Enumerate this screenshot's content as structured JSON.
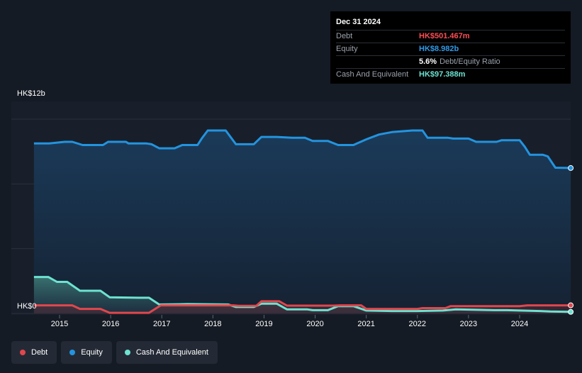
{
  "tooltip": {
    "date": "Dec 31 2024",
    "debt_label": "Debt",
    "debt_value": "HK$501.467m",
    "equity_label": "Equity",
    "equity_value": "HK$8.982b",
    "ratio_value": "5.6%",
    "ratio_label": "Debt/Equity Ratio",
    "cash_label": "Cash And Equivalent",
    "cash_value": "HK$97.388m"
  },
  "legend": [
    {
      "label": "Debt",
      "color": "#e0474c"
    },
    {
      "label": "Equity",
      "color": "#2394df"
    },
    {
      "label": "Cash And Equivalent",
      "color": "#6de2d0"
    }
  ],
  "chart_data": {
    "type": "line",
    "y_unit": "HK$b",
    "ylim": [
      0,
      12
    ],
    "ytick_labels": [
      "HK$0",
      "HK$12b"
    ],
    "xlim": [
      2014.5,
      2025.0
    ],
    "xticks": [
      2015,
      2016,
      2017,
      2018,
      2019,
      2020,
      2021,
      2022,
      2023,
      2024
    ],
    "series": [
      {
        "name": "Equity",
        "color": "#2394df",
        "x": [
          2014.5,
          2014.8,
          2014.95,
          2015.1,
          2015.25,
          2015.45,
          2015.55,
          2015.85,
          2015.95,
          2016.3,
          2016.35,
          2016.7,
          2016.8,
          2016.95,
          2017.0,
          2017.25,
          2017.4,
          2017.7,
          2017.78,
          2017.9,
          2018.25,
          2018.45,
          2018.55,
          2018.8,
          2018.95,
          2019.25,
          2019.55,
          2019.8,
          2019.95,
          2020.25,
          2020.45,
          2020.75,
          2021.0,
          2021.25,
          2021.5,
          2021.7,
          2021.9,
          2022.1,
          2022.2,
          2022.6,
          2022.7,
          2023.0,
          2023.15,
          2023.55,
          2023.65,
          2024.0,
          2024.1,
          2024.2,
          2024.45,
          2024.55,
          2024.7,
          2025.0
        ],
        "values": [
          10.5,
          10.5,
          10.55,
          10.6,
          10.6,
          10.4,
          10.4,
          10.4,
          10.6,
          10.6,
          10.5,
          10.5,
          10.45,
          10.2,
          10.2,
          10.2,
          10.4,
          10.4,
          10.8,
          11.3,
          11.3,
          10.45,
          10.45,
          10.45,
          10.9,
          10.9,
          10.85,
          10.85,
          10.65,
          10.65,
          10.4,
          10.4,
          10.75,
          11.05,
          11.2,
          11.25,
          11.3,
          11.3,
          10.85,
          10.85,
          10.8,
          10.8,
          10.6,
          10.6,
          10.7,
          10.7,
          10.3,
          9.8,
          9.8,
          9.7,
          9.0,
          8.982
        ]
      },
      {
        "name": "Debt",
        "color": "#e0474c",
        "x": [
          2014.5,
          2015.1,
          2015.25,
          2015.4,
          2015.8,
          2015.98,
          2016.75,
          2016.98,
          2018.4,
          2018.5,
          2018.85,
          2018.95,
          2019.3,
          2019.45,
          2020.35,
          2020.5,
          2020.9,
          2021.0,
          2022.0,
          2022.1,
          2022.55,
          2022.65,
          2024.0,
          2024.15,
          2025.0
        ],
        "values": [
          0.5,
          0.5,
          0.5,
          0.28,
          0.28,
          0.04,
          0.04,
          0.5,
          0.5,
          0.47,
          0.47,
          0.75,
          0.75,
          0.48,
          0.48,
          0.5,
          0.5,
          0.28,
          0.28,
          0.33,
          0.33,
          0.45,
          0.45,
          0.5,
          0.501
        ]
      },
      {
        "name": "Cash And Equivalent",
        "color": "#6de2d0",
        "x": [
          2014.5,
          2014.78,
          2014.95,
          2015.15,
          2015.4,
          2015.55,
          2015.8,
          2015.98,
          2016.55,
          2016.75,
          2016.95,
          2017.5,
          2018.3,
          2018.45,
          2018.8,
          2018.95,
          2019.25,
          2019.45,
          2019.85,
          2019.95,
          2020.25,
          2020.45,
          2020.75,
          2021.0,
          2021.5,
          2022.0,
          2022.5,
          2022.75,
          2023.5,
          2023.75,
          2024.4,
          2024.6,
          2025.0
        ],
        "values": [
          2.25,
          2.25,
          1.95,
          1.95,
          1.4,
          1.4,
          1.4,
          1.0,
          0.97,
          0.97,
          0.55,
          0.58,
          0.55,
          0.4,
          0.4,
          0.6,
          0.6,
          0.25,
          0.25,
          0.2,
          0.2,
          0.45,
          0.45,
          0.18,
          0.15,
          0.15,
          0.18,
          0.25,
          0.2,
          0.2,
          0.15,
          0.12,
          0.097
        ]
      }
    ]
  }
}
